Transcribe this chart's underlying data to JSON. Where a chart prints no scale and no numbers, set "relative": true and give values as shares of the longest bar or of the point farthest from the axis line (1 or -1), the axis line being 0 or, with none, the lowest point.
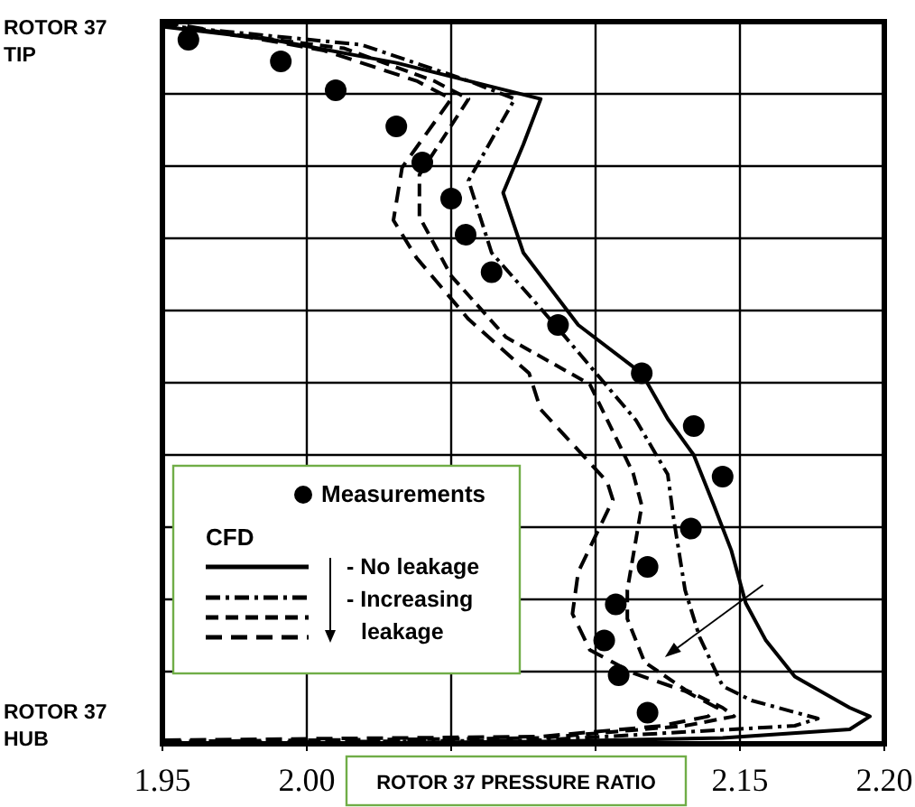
{
  "chart_data": {
    "type": "line",
    "relative": true,
    "xlabel": "ROTOR 37 PRESSURE RATIO",
    "legend_title": "CFD",
    "legend": "bottom left",
    "grid": true,
    "annotations": [
      "ROTOR 37 TIP",
      "ROTOR 37 HUB",
      "- Increasing leakage"
    ],
    "xlim": [
      1.95,
      2.2
    ],
    "xticks": [
      1.95,
      {
        "value": 2.0,
        "label": "2.00"
      },
      {
        "value": 2.05,
        "label": null
      },
      {
        "value": 2.1,
        "label": null
      },
      2.15,
      {
        "value": 2.2,
        "label": "2.20"
      }
    ],
    "series": [
      {
        "name": "Measurements",
        "type": "scatter",
        "marker": "circle",
        "color": "#000000",
        "x": [
          1.959,
          1.991,
          2.01,
          2.031,
          2.04,
          2.05,
          2.055,
          2.064,
          2.087,
          2.116,
          2.134,
          2.144,
          2.133,
          2.118,
          2.107,
          2.103,
          2.108,
          2.118
        ],
        "values": [
          0.975,
          0.945,
          0.905,
          0.855,
          0.805,
          0.755,
          0.705,
          0.653,
          0.58,
          0.513,
          0.44,
          0.37,
          0.298,
          0.245,
          0.193,
          0.143,
          0.095,
          0.043
        ]
      },
      {
        "name": "- No leakage",
        "line_style": "solid",
        "color": "#000000",
        "x": [
          1.95,
          1.988,
          2.031,
          2.056,
          2.081,
          2.075,
          2.068,
          2.075,
          2.094,
          2.116,
          2.125,
          2.134,
          2.141,
          2.147,
          2.152,
          2.159,
          2.169,
          2.188,
          2.195,
          2.188,
          2.144,
          2.081,
          2.019,
          1.95
        ],
        "values": [
          0.993,
          0.975,
          0.943,
          0.918,
          0.893,
          0.83,
          0.763,
          0.68,
          0.58,
          0.513,
          0.45,
          0.4,
          0.33,
          0.268,
          0.195,
          0.143,
          0.093,
          0.05,
          0.038,
          0.02,
          0.008,
          0.003,
          0.001,
          0
        ]
      },
      {
        "line_style": "dashed",
        "color": "#000000",
        "x": [
          1.95,
          2.019,
          2.056,
          2.072,
          2.056,
          2.064,
          2.086,
          2.114,
          2.125,
          2.127,
          2.131,
          2.136,
          2.144,
          2.154,
          2.177,
          2.169,
          2.081,
          1.95
        ],
        "values": [
          0.995,
          0.968,
          0.918,
          0.893,
          0.78,
          0.68,
          0.58,
          0.448,
          0.373,
          0.313,
          0.213,
          0.148,
          0.08,
          0.06,
          0.035,
          0.025,
          0.005,
          0.001
        ]
      },
      {
        "line_style": "dashed",
        "color": "#000000",
        "x": [
          1.95,
          2.013,
          2.044,
          2.056,
          2.039,
          2.039,
          2.05,
          2.069,
          2.098,
          2.113,
          2.116,
          2.111,
          2.111,
          2.117,
          2.131,
          2.144,
          2.148,
          2.131,
          2.081,
          1.95
        ],
        "values": [
          0.995,
          0.963,
          0.918,
          0.893,
          0.788,
          0.73,
          0.648,
          0.563,
          0.498,
          0.375,
          0.33,
          0.213,
          0.173,
          0.113,
          0.075,
          0.05,
          0.038,
          0.025,
          0.008,
          0.003
        ]
      },
      {
        "line_style": "dashed",
        "color": "#000000",
        "x": [
          1.95,
          2.006,
          2.038,
          2.05,
          2.033,
          2.03,
          2.038,
          2.056,
          2.077,
          2.081,
          2.104,
          2.106,
          2.094,
          2.092,
          2.098,
          2.113,
          2.131,
          2.142,
          2.139,
          2.123,
          2.081,
          1.95
        ],
        "values": [
          1,
          0.96,
          0.918,
          0.893,
          0.798,
          0.725,
          0.673,
          0.588,
          0.513,
          0.463,
          0.363,
          0.338,
          0.238,
          0.18,
          0.13,
          0.098,
          0.073,
          0.05,
          0.038,
          0.025,
          0.01,
          0.005
        ]
      }
    ]
  }
}
